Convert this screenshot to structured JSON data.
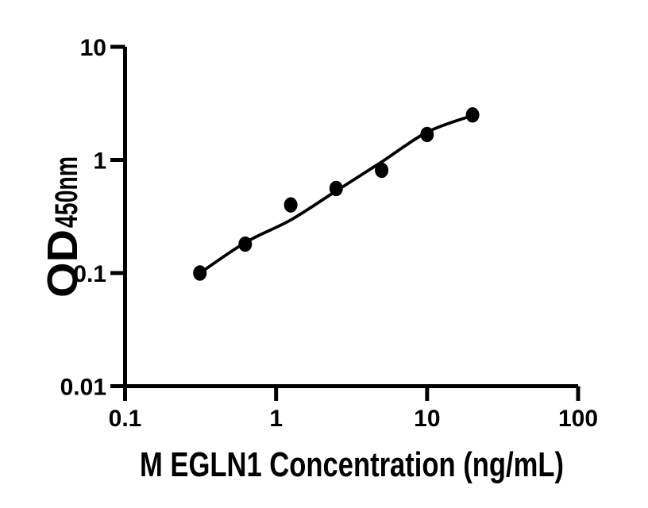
{
  "figure": {
    "background": "#ffffff",
    "ink": "#000000"
  },
  "chart_data": {
    "type": "scatter",
    "title": "",
    "xlabel": "M EGLN1 Concentration (ng/mL)",
    "ylabel_main": "OD",
    "ylabel_sub": "450nm",
    "x_scale": "log",
    "y_scale": "log",
    "xlim": [
      0.1,
      100
    ],
    "ylim": [
      0.01,
      10
    ],
    "grid": false,
    "legend": "none",
    "x_ticks": [
      {
        "value": 0.1,
        "label": "0.1"
      },
      {
        "value": 1,
        "label": "1"
      },
      {
        "value": 10,
        "label": "10"
      },
      {
        "value": 100,
        "label": "100"
      }
    ],
    "y_ticks": [
      {
        "value": 0.01,
        "label": "0.01"
      },
      {
        "value": 0.1,
        "label": "0.1"
      },
      {
        "value": 1,
        "label": "1"
      },
      {
        "value": 10,
        "label": "10"
      }
    ],
    "series": [
      {
        "name": "M EGLN1 standard points",
        "type": "scatter",
        "marker": "filled-ellipse",
        "x": [
          0.313,
          0.625,
          1.25,
          2.5,
          5,
          10,
          20
        ],
        "y": [
          0.1,
          0.18,
          0.4,
          0.56,
          0.81,
          1.68,
          2.5
        ]
      },
      {
        "name": "fitted standard curve",
        "type": "line",
        "x": [
          0.313,
          0.625,
          1.25,
          2.5,
          5,
          10,
          20
        ],
        "y": [
          0.1,
          0.186,
          0.295,
          0.532,
          0.961,
          1.76,
          2.47
        ]
      }
    ],
    "marker_color": "#000000",
    "line_color": "#000000"
  }
}
